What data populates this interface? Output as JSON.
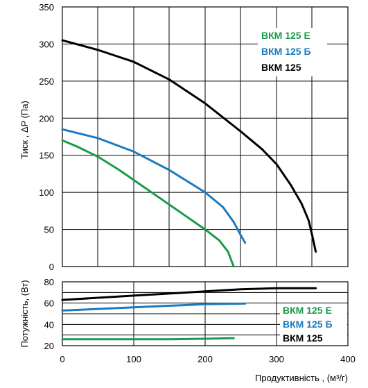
{
  "chart_data": [
    {
      "type": "line",
      "ylabel": "Тиск , ΔP (Па)",
      "xlim": [
        0,
        400
      ],
      "ylim": [
        0,
        350
      ],
      "x_ticks": [
        0,
        100,
        200,
        300,
        400
      ],
      "y_ticks": [
        0,
        50,
        100,
        150,
        200,
        250,
        300,
        350
      ],
      "grid": true,
      "legend_position": "top-right",
      "legend": [
        "ВКМ 125 Е",
        "ВКМ 125 Б",
        "ВКМ 125"
      ],
      "series": [
        {
          "name": "ВКМ 125 Е",
          "color": "#1a9a4a",
          "x": [
            0,
            20,
            50,
            80,
            110,
            140,
            170,
            200,
            220,
            232,
            238,
            240
          ],
          "y": [
            170,
            162,
            148,
            130,
            110,
            90,
            70,
            50,
            35,
            20,
            5,
            0
          ]
        },
        {
          "name": "ВКМ 125 Б",
          "color": "#1a7abf",
          "x": [
            0,
            50,
            100,
            150,
            200,
            225,
            240,
            250,
            256
          ],
          "y": [
            185,
            173,
            155,
            130,
            100,
            80,
            60,
            42,
            32
          ]
        },
        {
          "name": "ВКМ 125",
          "color": "#000000",
          "x": [
            0,
            50,
            100,
            150,
            200,
            250,
            280,
            300,
            320,
            335,
            345,
            350,
            355
          ],
          "y": [
            305,
            292,
            276,
            252,
            220,
            182,
            158,
            138,
            110,
            85,
            62,
            42,
            20
          ]
        }
      ]
    },
    {
      "type": "line",
      "xlabel": "Продуктивність , (м³/г)",
      "ylabel": "Потужність, (Вт)",
      "xlim": [
        0,
        400
      ],
      "ylim": [
        20,
        80
      ],
      "x_ticks": [
        0,
        100,
        200,
        300,
        400
      ],
      "y_ticks": [
        20,
        40,
        60,
        80
      ],
      "grid": true,
      "legend_position": "bottom-right",
      "legend": [
        "ВКМ 125 Е",
        "ВКМ 125 Б",
        "ВКМ 125"
      ],
      "series": [
        {
          "name": "ВКМ 125 Е",
          "color": "#1a9a4a",
          "x": [
            0,
            50,
            100,
            150,
            200,
            240
          ],
          "y": [
            26,
            26,
            26,
            26,
            26.5,
            27
          ]
        },
        {
          "name": "ВКМ 125 Б",
          "color": "#1a7abf",
          "x": [
            0,
            50,
            100,
            150,
            200,
            256
          ],
          "y": [
            53,
            54.5,
            56,
            57.5,
            59,
            59.5
          ]
        },
        {
          "name": "ВКМ 125",
          "color": "#000000",
          "x": [
            0,
            50,
            100,
            150,
            200,
            250,
            300,
            355
          ],
          "y": [
            63,
            65,
            67,
            69,
            71,
            73,
            74,
            74
          ]
        }
      ]
    }
  ]
}
